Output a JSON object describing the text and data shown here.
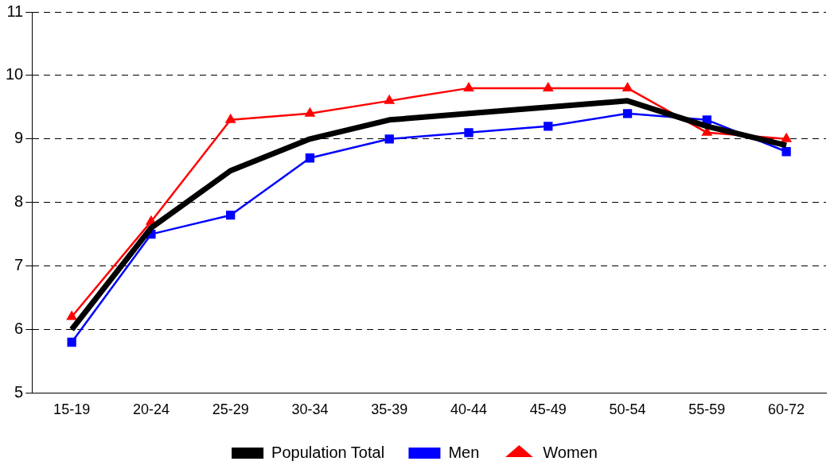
{
  "chart_data": {
    "type": "line",
    "categories": [
      "15-19",
      "20-24",
      "25-29",
      "30-34",
      "35-39",
      "40-44",
      "45-49",
      "50-54",
      "55-59",
      "60-72"
    ],
    "series": [
      {
        "name": "Population Total",
        "color": "#000000",
        "marker": "none",
        "values": [
          6.0,
          7.6,
          8.5,
          9.0,
          9.3,
          9.4,
          9.5,
          9.6,
          9.2,
          8.9
        ]
      },
      {
        "name": "Men",
        "color": "#0000ff",
        "marker": "square",
        "values": [
          5.8,
          7.5,
          7.8,
          8.7,
          9.0,
          9.1,
          9.2,
          9.4,
          9.3,
          8.8
        ]
      },
      {
        "name": "Women",
        "color": "#ff0000",
        "marker": "triangle",
        "values": [
          6.2,
          7.7,
          9.3,
          9.4,
          9.6,
          9.8,
          9.8,
          9.8,
          9.1,
          9.0
        ]
      }
    ],
    "ylim": [
      5,
      11
    ],
    "yticks": [
      5,
      6,
      7,
      8,
      9,
      10,
      11
    ],
    "grid": "y",
    "legend": "bottom",
    "line_style": "solid"
  }
}
